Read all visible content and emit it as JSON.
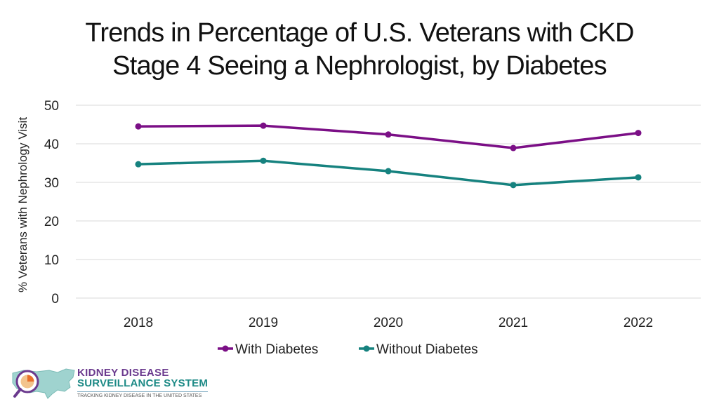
{
  "chart_data": {
    "type": "line",
    "title_line1": "Trends in Percentage of U.S. Veterans with CKD",
    "title_line2": "Stage 4 Seeing a Nephrologist, by Diabetes",
    "xlabel": "",
    "ylabel": "% Veterans with Nephrology Visit",
    "categories": [
      "2018",
      "2019",
      "2020",
      "2021",
      "2022"
    ],
    "ylim": [
      0,
      50
    ],
    "yticks": [
      "0",
      "10",
      "20",
      "30",
      "40",
      "50"
    ],
    "grid": true,
    "legend_position": "bottom",
    "series": [
      {
        "name": "With Diabetes",
        "color": "#7b0f86",
        "values": [
          44.5,
          44.7,
          42.4,
          38.9,
          42.8
        ]
      },
      {
        "name": "Without Diabetes",
        "color": "#16827f",
        "values": [
          34.7,
          35.6,
          32.9,
          29.3,
          31.3
        ]
      }
    ]
  },
  "logo": {
    "line1": "KIDNEY DISEASE",
    "line2": "SURVEILLANCE SYSTEM",
    "line3": "TRACKING KIDNEY DISEASE IN THE UNITED STATES"
  }
}
